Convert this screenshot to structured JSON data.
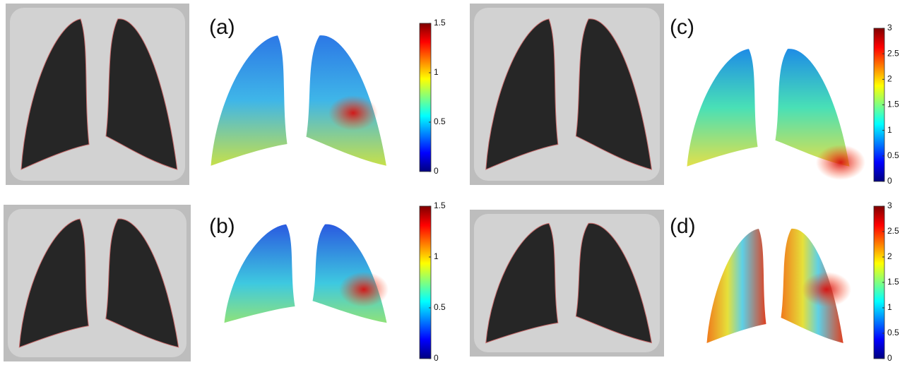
{
  "panels": [
    {
      "label": "(a)",
      "colorbar": {
        "lim": [
          0,
          1.5
        ],
        "ticks": [
          0,
          0.5,
          1,
          1.5
        ]
      }
    },
    {
      "label": "(b)",
      "colorbar": {
        "lim": [
          0,
          1.5
        ],
        "ticks": [
          0,
          0.5,
          1,
          1.5
        ]
      }
    },
    {
      "label": "(c)",
      "colorbar": {
        "lim": [
          0,
          3
        ],
        "ticks": [
          0,
          0.5,
          1,
          1.5,
          2,
          2.5,
          3
        ]
      }
    },
    {
      "label": "(d)",
      "colorbar": {
        "lim": [
          0,
          3
        ],
        "ticks": [
          0,
          0.5,
          1,
          1.5,
          2,
          2.5,
          3
        ]
      }
    }
  ]
}
